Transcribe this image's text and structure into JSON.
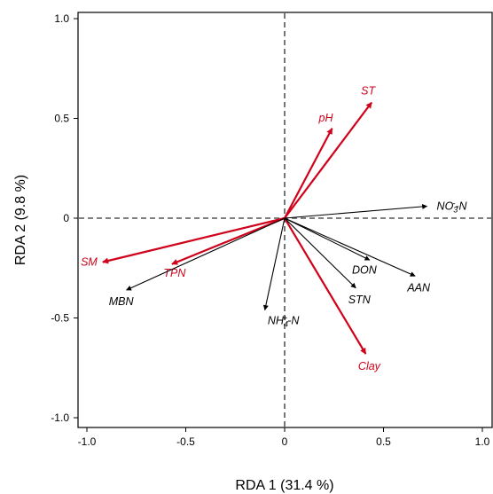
{
  "chart_data": {
    "type": "scatter",
    "subtype": "rda-biplot",
    "xlabel": "RDA 1 (31.4 %)",
    "ylabel": "RDA 2 (9.8 %)",
    "xlim": [
      -1.05,
      1.05
    ],
    "ylim": [
      -1.05,
      1.05
    ],
    "x_ticks": [
      {
        "value": -1.0,
        "label": "-1.0"
      },
      {
        "value": -0.5,
        "label": "-0.5"
      },
      {
        "value": 0,
        "label": "0"
      },
      {
        "value": 0.5,
        "label": "0.5"
      },
      {
        "value": 1.0,
        "label": "1.0"
      }
    ],
    "y_ticks": [
      {
        "value": 1.0,
        "label": "1.0"
      },
      {
        "value": 0.5,
        "label": "0.5"
      },
      {
        "value": 0,
        "label": "0"
      },
      {
        "value": -0.5,
        "label": "-0.5"
      },
      {
        "value": -1.0,
        "label": "-1.0"
      }
    ],
    "reference_lines": {
      "x": 0,
      "y": 0,
      "style": "dashed"
    },
    "grid": false,
    "colors": {
      "environmental": "#d0021b",
      "response": "#000000",
      "reference": "#555555"
    },
    "series": [
      {
        "group": "environmental",
        "vectors": [
          {
            "name": "ST",
            "label_parts": [
              {
                "t": "ST"
              }
            ],
            "x": 0.44,
            "y": 0.58
          },
          {
            "name": "pH",
            "label_parts": [
              {
                "t": "pH"
              }
            ],
            "x": 0.24,
            "y": 0.45
          },
          {
            "name": "SM",
            "label_parts": [
              {
                "t": "SM"
              }
            ],
            "x": -0.92,
            "y": -0.22
          },
          {
            "name": "TPN",
            "label_parts": [
              {
                "t": "TPN"
              }
            ],
            "x": -0.57,
            "y": -0.23
          },
          {
            "name": "Clay",
            "label_parts": [
              {
                "t": "Clay"
              }
            ],
            "x": 0.41,
            "y": -0.68
          }
        ]
      },
      {
        "group": "response",
        "vectors": [
          {
            "name": "NO3--N",
            "label_parts": [
              {
                "t": "NO"
              },
              {
                "t": "3",
                "pos": "sub"
              },
              {
                "t": "-",
                "pos": "super"
              },
              {
                "t": "-N"
              }
            ],
            "x": 0.72,
            "y": 0.06
          },
          {
            "name": "DON",
            "label_parts": [
              {
                "t": "DON"
              }
            ],
            "x": 0.43,
            "y": -0.21
          },
          {
            "name": "AAN",
            "label_parts": [
              {
                "t": "AAN"
              }
            ],
            "x": 0.66,
            "y": -0.29
          },
          {
            "name": "STN",
            "label_parts": [
              {
                "t": "STN"
              }
            ],
            "x": 0.36,
            "y": -0.35
          },
          {
            "name": "NH4+-N",
            "label_parts": [
              {
                "t": "NH"
              },
              {
                "t": "4",
                "pos": "sub"
              },
              {
                "t": "+",
                "pos": "super"
              },
              {
                "t": "-N"
              }
            ],
            "x": -0.1,
            "y": -0.46
          },
          {
            "name": "MBN",
            "label_parts": [
              {
                "t": "MBN"
              }
            ],
            "x": -0.8,
            "y": -0.36
          }
        ]
      }
    ]
  }
}
